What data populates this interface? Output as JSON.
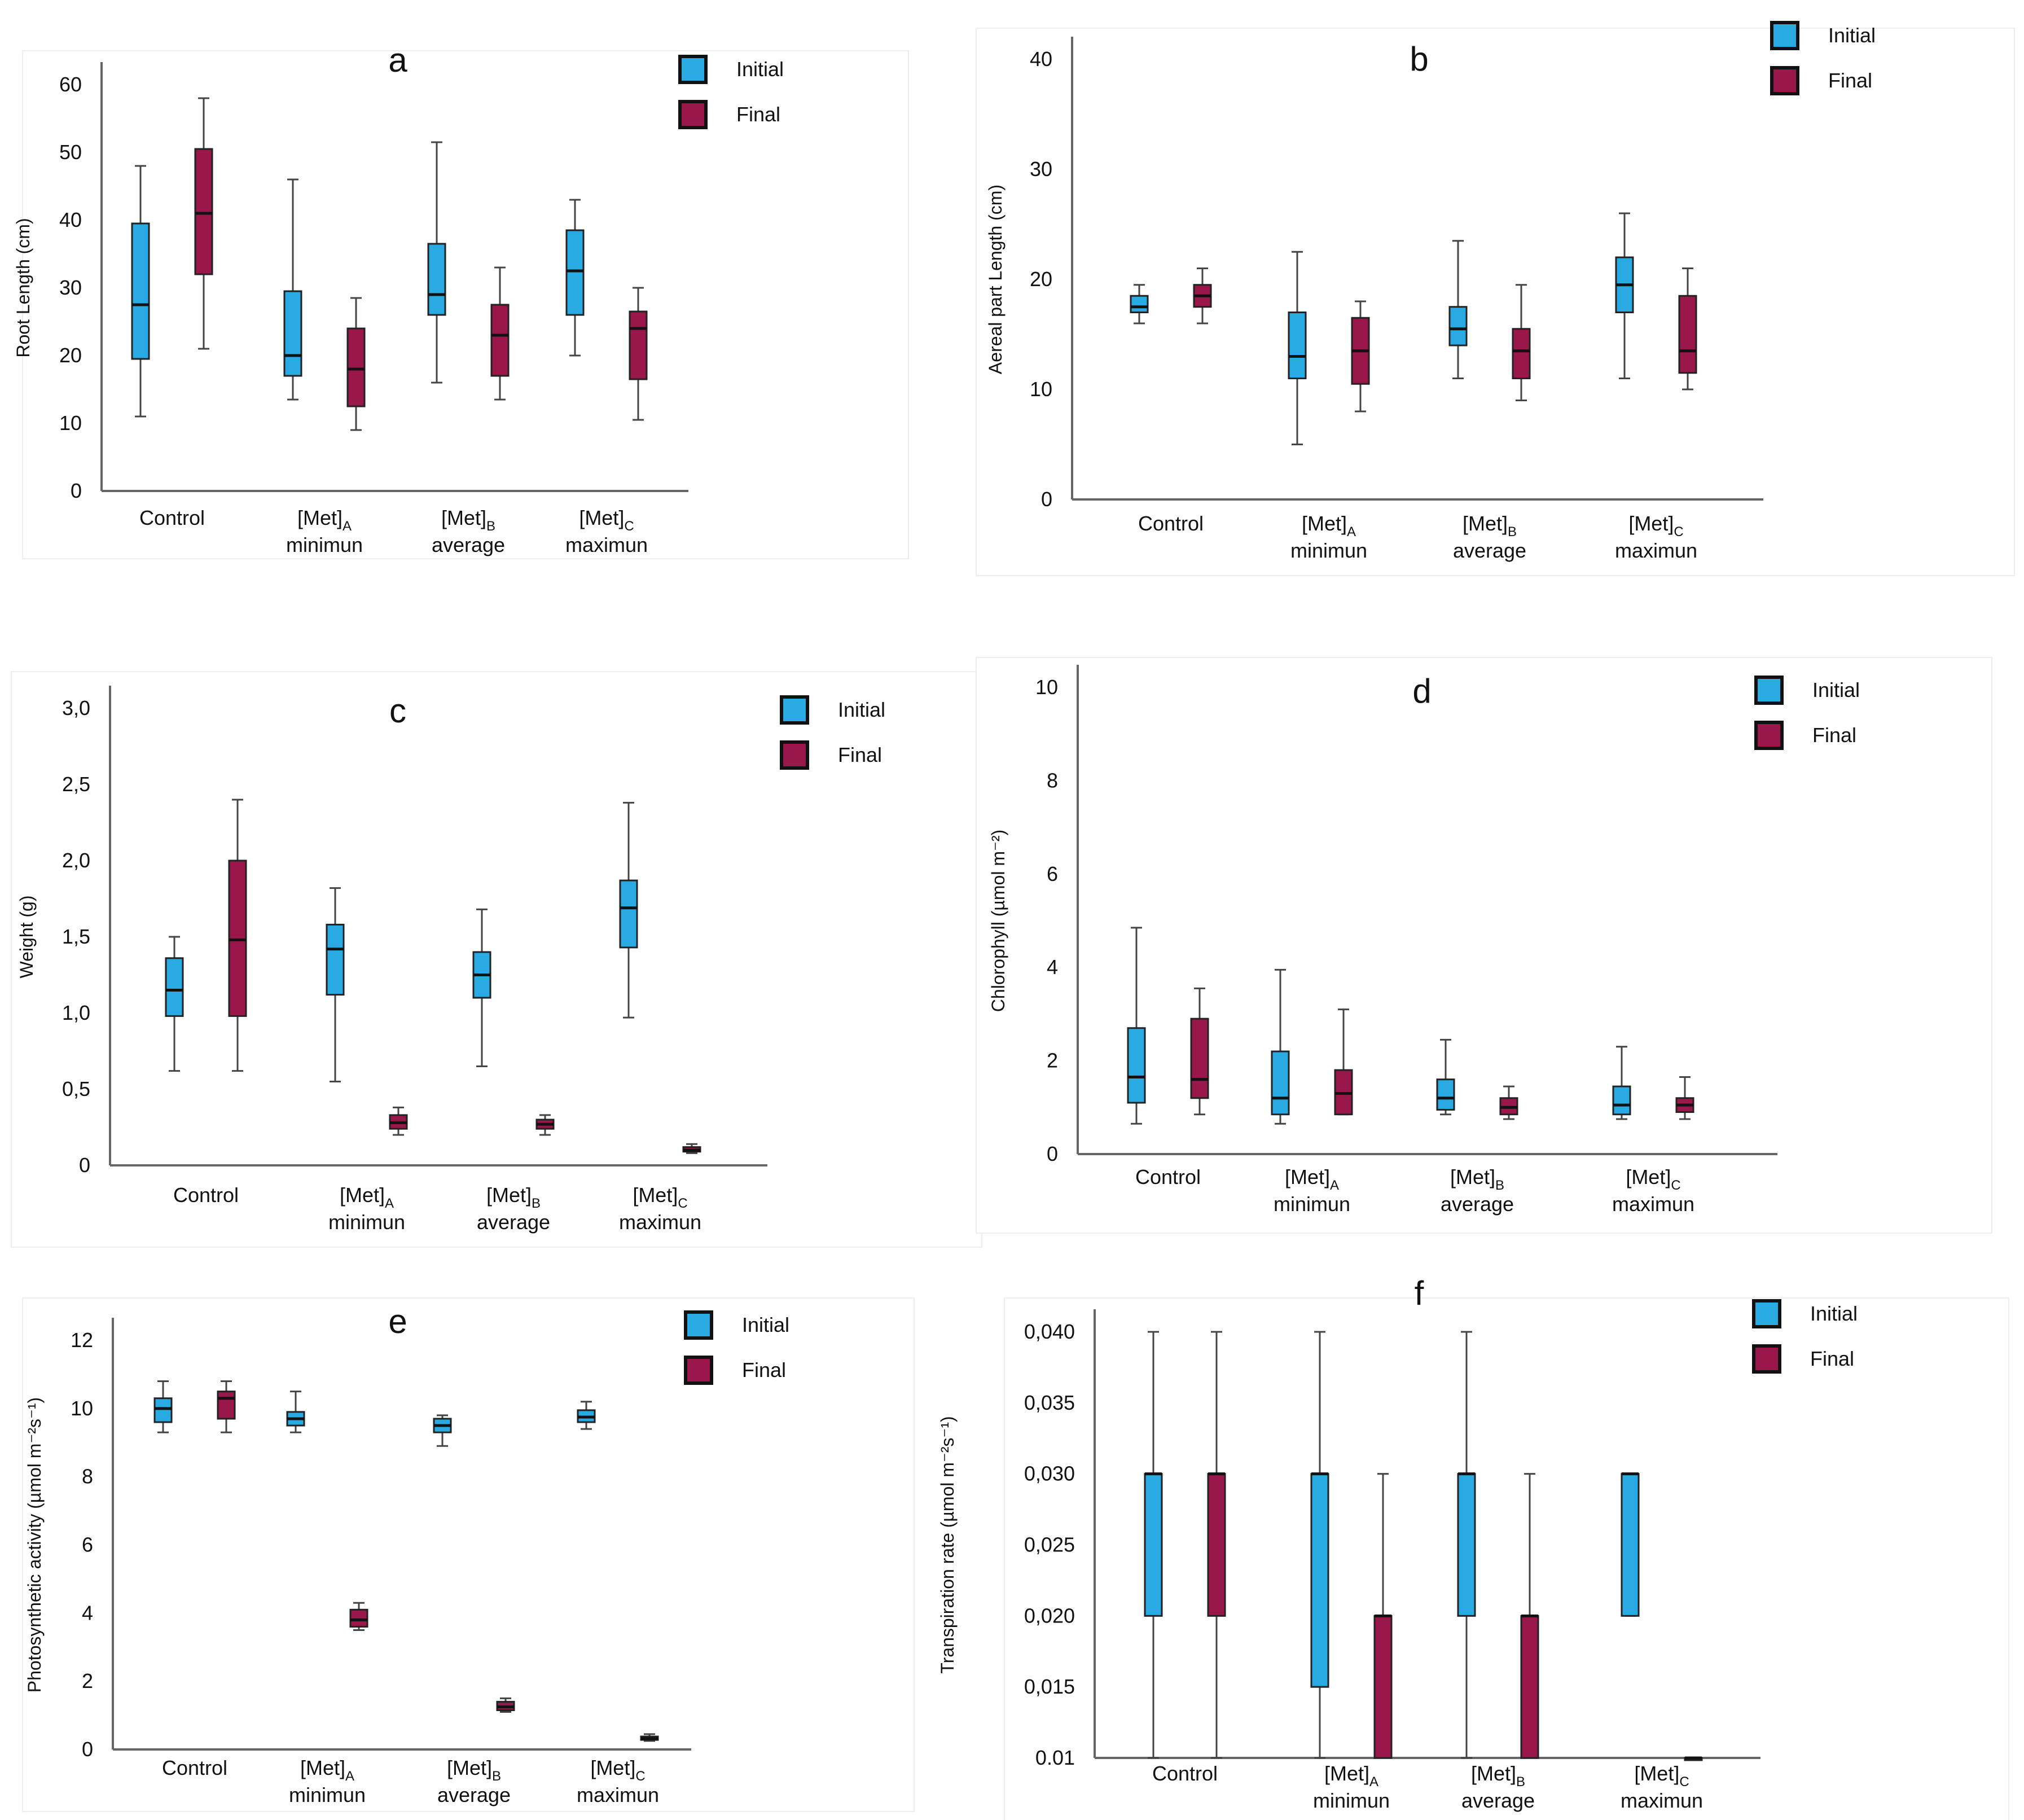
{
  "colors": {
    "initial": "#29aae2",
    "final": "#99174a"
  },
  "chart_data": [
    {
      "type": "box",
      "title": "a",
      "ylabel": "Root Length (cm)",
      "ylim": [
        0,
        60
      ],
      "yticks": [
        "0",
        "10",
        "20",
        "30",
        "40",
        "50",
        "60"
      ],
      "categories": [
        [
          "Control"
        ],
        [
          "[Met]",
          "A",
          "minimun"
        ],
        [
          "[Met]",
          "B",
          "average"
        ],
        [
          "[Met]",
          "C",
          "maximun"
        ]
      ],
      "legend": [
        "Initial",
        "Final"
      ],
      "series": [
        {
          "name": "Initial",
          "boxes": [
            {
              "min": 11,
              "q1": 19.5,
              "median": 27.5,
              "q3": 39.5,
              "max": 48
            },
            {
              "min": 13.5,
              "q1": 17,
              "median": 20,
              "q3": 29.5,
              "max": 46
            },
            {
              "min": 16,
              "q1": 26,
              "median": 29,
              "q3": 36.5,
              "max": 51.5
            },
            {
              "min": 20,
              "q1": 26,
              "median": 32.5,
              "q3": 38.5,
              "max": 43
            }
          ]
        },
        {
          "name": "Final",
          "boxes": [
            {
              "min": 21,
              "q1": 32,
              "median": 41,
              "q3": 50.5,
              "max": 58
            },
            {
              "min": 9,
              "q1": 12.5,
              "median": 18,
              "q3": 24,
              "max": 28.5
            },
            {
              "min": 13.5,
              "q1": 17,
              "median": 23,
              "q3": 27.5,
              "max": 33
            },
            {
              "min": 10.5,
              "q1": 16.5,
              "median": 24,
              "q3": 26.5,
              "max": 30
            }
          ]
        }
      ]
    },
    {
      "type": "box",
      "title": "b",
      "ylabel": "Aereal part Length (cm)",
      "ylim": [
        0,
        40
      ],
      "yticks": [
        "0",
        "10",
        "20",
        "30",
        "40"
      ],
      "categories": [
        [
          "Control"
        ],
        [
          "[Met]",
          "A",
          "minimun"
        ],
        [
          "[Met]",
          "B",
          "average"
        ],
        [
          "[Met]",
          "C",
          "maximun"
        ]
      ],
      "legend": [
        "Initial",
        "Final"
      ],
      "series": [
        {
          "name": "Initial",
          "boxes": [
            {
              "min": 16,
              "q1": 17,
              "median": 17.5,
              "q3": 18.5,
              "max": 19.5
            },
            {
              "min": 5,
              "q1": 11,
              "median": 13,
              "q3": 17,
              "max": 22.5
            },
            {
              "min": 11,
              "q1": 14,
              "median": 15.5,
              "q3": 17.5,
              "max": 23.5
            },
            {
              "min": 11,
              "q1": 17,
              "median": 19.5,
              "q3": 22,
              "max": 26
            }
          ]
        },
        {
          "name": "Final",
          "boxes": [
            {
              "min": 16,
              "q1": 17.5,
              "median": 18.5,
              "q3": 19.5,
              "max": 21
            },
            {
              "min": 8,
              "q1": 10.5,
              "median": 13.5,
              "q3": 16.5,
              "max": 18
            },
            {
              "min": 9,
              "q1": 11,
              "median": 13.5,
              "q3": 15.5,
              "max": 19.5
            },
            {
              "min": 10,
              "q1": 11.5,
              "median": 13.5,
              "q3": 18.5,
              "max": 21
            }
          ]
        }
      ]
    },
    {
      "type": "box",
      "title": "c",
      "ylabel": "Weight (g)",
      "ylim": [
        0,
        3
      ],
      "yticks": [
        "0",
        "0,5",
        "1,0",
        "1,5",
        "2,0",
        "2,5",
        "3,0"
      ],
      "categories": [
        [
          "Control"
        ],
        [
          "[Met]",
          "A",
          "minimun"
        ],
        [
          "[Met]",
          "B",
          "average"
        ],
        [
          "[Met]",
          "C",
          "maximun"
        ]
      ],
      "legend": [
        "Initial",
        "Final"
      ],
      "series": [
        {
          "name": "Initial",
          "boxes": [
            {
              "min": 0.62,
              "q1": 0.98,
              "median": 1.15,
              "q3": 1.36,
              "max": 1.5
            },
            {
              "min": 0.55,
              "q1": 1.12,
              "median": 1.42,
              "q3": 1.58,
              "max": 1.82
            },
            {
              "min": 0.65,
              "q1": 1.1,
              "median": 1.25,
              "q3": 1.4,
              "max": 1.68
            },
            {
              "min": 0.97,
              "q1": 1.43,
              "median": 1.69,
              "q3": 1.87,
              "max": 2.38
            }
          ]
        },
        {
          "name": "Final",
          "boxes": [
            {
              "min": 0.62,
              "q1": 0.98,
              "median": 1.48,
              "q3": 2.0,
              "max": 2.4
            },
            {
              "min": 0.2,
              "q1": 0.24,
              "median": 0.28,
              "q3": 0.33,
              "max": 0.38
            },
            {
              "min": 0.2,
              "q1": 0.24,
              "median": 0.27,
              "q3": 0.3,
              "max": 0.33
            },
            {
              "min": 0.08,
              "q1": 0.09,
              "median": 0.1,
              "q3": 0.12,
              "max": 0.14
            }
          ]
        }
      ]
    },
    {
      "type": "box",
      "title": "d",
      "ylabel": "Chlorophyll (µmol m⁻²)",
      "ylim": [
        0,
        10
      ],
      "yticks": [
        "0",
        "2",
        "4",
        "6",
        "8",
        "10"
      ],
      "categories": [
        [
          "Control"
        ],
        [
          "[Met]",
          "A",
          "minimun"
        ],
        [
          "[Met]",
          "B",
          "average"
        ],
        [
          "[Met]",
          "C",
          "maximun"
        ]
      ],
      "legend": [
        "Initial",
        "Final"
      ],
      "series": [
        {
          "name": "Initial",
          "boxes": [
            {
              "min": 0.65,
              "q1": 1.1,
              "median": 1.65,
              "q3": 2.7,
              "max": 4.85
            },
            {
              "min": 0.65,
              "q1": 0.85,
              "median": 1.2,
              "q3": 2.2,
              "max": 3.95
            },
            {
              "min": 0.85,
              "q1": 0.95,
              "median": 1.2,
              "q3": 1.6,
              "max": 2.45
            },
            {
              "min": 0.75,
              "q1": 0.85,
              "median": 1.05,
              "q3": 1.45,
              "max": 2.3
            }
          ]
        },
        {
          "name": "Final",
          "boxes": [
            {
              "min": 0.85,
              "q1": 1.2,
              "median": 1.6,
              "q3": 2.9,
              "max": 3.55
            },
            {
              "min": 0.85,
              "q1": 0.85,
              "median": 1.3,
              "q3": 1.8,
              "max": 3.1
            },
            {
              "min": 0.75,
              "q1": 0.85,
              "median": 1.0,
              "q3": 1.2,
              "max": 1.45
            },
            {
              "min": 0.75,
              "q1": 0.9,
              "median": 1.05,
              "q3": 1.2,
              "max": 1.65
            }
          ]
        }
      ]
    },
    {
      "type": "box",
      "title": "e",
      "ylabel": "Photosynthetic activity (µmol m⁻²s⁻¹)",
      "ylim": [
        0,
        12
      ],
      "yticks": [
        "0",
        "2",
        "4",
        "6",
        "8",
        "10",
        "12"
      ],
      "categories": [
        [
          "Control"
        ],
        [
          "[Met]",
          "A",
          "minimun"
        ],
        [
          "[Met]",
          "B",
          "average"
        ],
        [
          "[Met]",
          "C",
          "maximun"
        ]
      ],
      "legend": [
        "Initial",
        "Final"
      ],
      "series": [
        {
          "name": "Initial",
          "boxes": [
            {
              "min": 9.3,
              "q1": 9.6,
              "median": 10.0,
              "q3": 10.3,
              "max": 10.8
            },
            {
              "min": 9.3,
              "q1": 9.5,
              "median": 9.7,
              "q3": 9.9,
              "max": 10.5
            },
            {
              "min": 8.9,
              "q1": 9.3,
              "median": 9.5,
              "q3": 9.7,
              "max": 9.8
            },
            {
              "min": 9.4,
              "q1": 9.6,
              "median": 9.75,
              "q3": 9.95,
              "max": 10.2
            }
          ]
        },
        {
          "name": "Final",
          "boxes": [
            {
              "min": 9.3,
              "q1": 9.7,
              "median": 10.3,
              "q3": 10.5,
              "max": 10.8
            },
            {
              "min": 3.5,
              "q1": 3.6,
              "median": 3.8,
              "q3": 4.1,
              "max": 4.3
            },
            {
              "min": 1.1,
              "q1": 1.15,
              "median": 1.25,
              "q3": 1.4,
              "max": 1.5
            },
            {
              "min": 0.25,
              "q1": 0.28,
              "median": 0.32,
              "q3": 0.38,
              "max": 0.45
            }
          ]
        }
      ]
    },
    {
      "type": "box",
      "title": "f",
      "ylabel": "Transpiration rate (µmol m⁻²s⁻¹)",
      "ylim": [
        0.01,
        0.04
      ],
      "yticks": [
        "0.01",
        "0,015",
        "0,020",
        "0,025",
        "0,030",
        "0,035",
        "0,040"
      ],
      "categories": [
        [
          "Control"
        ],
        [
          "[Met]",
          "A",
          "minimun"
        ],
        [
          "[Met]",
          "B",
          "average"
        ],
        [
          "[Met]",
          "C",
          "maximun"
        ]
      ],
      "legend": [
        "Initial",
        "Final"
      ],
      "series": [
        {
          "name": "Initial",
          "boxes": [
            {
              "min": 0.01,
              "q1": 0.02,
              "median": 0.03,
              "q3": 0.03,
              "max": 0.04
            },
            {
              "min": 0.01,
              "q1": 0.015,
              "median": 0.03,
              "q3": 0.03,
              "max": 0.04
            },
            {
              "min": 0.01,
              "q1": 0.02,
              "median": 0.03,
              "q3": 0.03,
              "max": 0.04
            },
            {
              "min": 0.02,
              "q1": 0.02,
              "median": 0.03,
              "q3": 0.03,
              "max": 0.03
            }
          ]
        },
        {
          "name": "Final",
          "boxes": [
            {
              "min": 0.01,
              "q1": 0.02,
              "median": 0.03,
              "q3": 0.03,
              "max": 0.04
            },
            {
              "min": 0.01,
              "q1": 0.01,
              "median": 0.02,
              "q3": 0.02,
              "max": 0.03
            },
            {
              "min": 0.01,
              "q1": 0.01,
              "median": 0.02,
              "q3": 0.02,
              "max": 0.03
            },
            {
              "min": 0.01,
              "q1": 0.01,
              "median": 0.01,
              "q3": 0.01,
              "max": 0.01
            }
          ]
        }
      ]
    }
  ]
}
